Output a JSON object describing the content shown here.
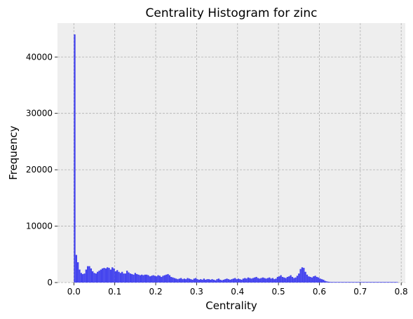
{
  "chart_data": {
    "type": "bar",
    "title": "Centrality Histogram for zinc",
    "xlabel": "Centrality",
    "ylabel": "Frequency",
    "xlim": [
      -0.04,
      0.81
    ],
    "ylim": [
      0,
      46000
    ],
    "xticks": [
      "0.0",
      "0.1",
      "0.2",
      "0.3",
      "0.4",
      "0.5",
      "0.6",
      "0.7",
      "0.8"
    ],
    "yticks": [
      "0",
      "10000",
      "20000",
      "30000",
      "40000"
    ],
    "grid": true,
    "colors": {
      "bars": "#4444ee",
      "plot_background": "#eeeeee",
      "grid": "#b0b0b0"
    },
    "bin_width": 0.004,
    "bin_start": 0.0,
    "values": [
      44000,
      4900,
      3600,
      2300,
      1700,
      1500,
      1600,
      2300,
      2900,
      2900,
      2500,
      2000,
      1700,
      1600,
      1900,
      2100,
      2300,
      2500,
      2600,
      2500,
      2700,
      2600,
      2300,
      2700,
      2500,
      2000,
      2200,
      1900,
      1700,
      1900,
      1600,
      1600,
      2100,
      1800,
      1600,
      1500,
      1400,
      1700,
      1500,
      1400,
      1300,
      1400,
      1300,
      1400,
      1400,
      1300,
      1100,
      1200,
      1300,
      1200,
      1100,
      1300,
      1200,
      1000,
      1200,
      1300,
      1400,
      1500,
      1300,
      1000,
      900,
      800,
      700,
      600,
      700,
      800,
      600,
      700,
      600,
      800,
      700,
      600,
      500,
      700,
      800,
      600,
      500,
      600,
      500,
      700,
      500,
      600,
      600,
      500,
      600,
      500,
      400,
      600,
      700,
      500,
      400,
      500,
      600,
      700,
      600,
      500,
      600,
      700,
      800,
      600,
      700,
      600,
      500,
      700,
      800,
      700,
      900,
      800,
      700,
      800,
      900,
      1000,
      800,
      700,
      800,
      900,
      800,
      700,
      800,
      900,
      700,
      800,
      600,
      700,
      1000,
      1100,
      1300,
      1000,
      900,
      800,
      1000,
      1100,
      1300,
      1000,
      800,
      900,
      1200,
      1600,
      2400,
      2700,
      2600,
      1900,
      1400,
      1100,
      1000,
      900,
      1100,
      1200,
      1000,
      900,
      700,
      600,
      500,
      300,
      200,
      150,
      120,
      100,
      80,
      60,
      50,
      40,
      30,
      30,
      20,
      20,
      20,
      15,
      10,
      10,
      10,
      10,
      10,
      10,
      10,
      10,
      10,
      10,
      10,
      10,
      10,
      10,
      10,
      10,
      10,
      10,
      10,
      10,
      10,
      10,
      10,
      10,
      10,
      10,
      10,
      10,
      10,
      10
    ]
  }
}
